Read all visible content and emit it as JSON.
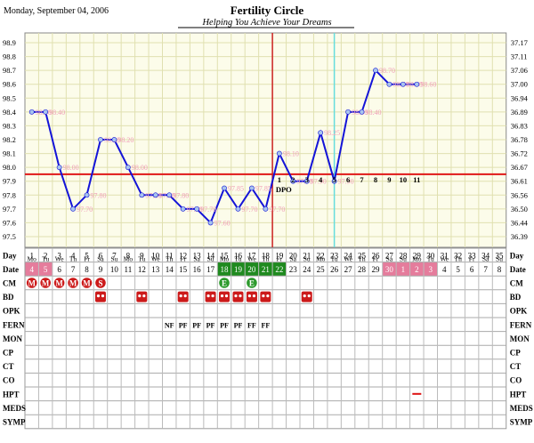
{
  "header": {
    "date": "Monday, September 04, 2006",
    "title": "Fertility Circle",
    "subtitle": "Helping You Achieve Your Dreams"
  },
  "colors": {
    "line": "#1414d8",
    "point": "#a8c4ee",
    "point_label": "#f0a0b8",
    "coverline": "#e01818",
    "ovulation_line": "#cc2222",
    "cycle_marker_line": "#66dddd",
    "grid": "#e0e0b0",
    "plot_bg": "#fcfcea",
    "menses": "#cc1a1a",
    "bd": "#cc1a1a",
    "cm_green": "#2d9a2d",
    "fertile_green": "#1f8a1f",
    "pink": "#e57c9c",
    "hpt": "#dd1111"
  },
  "chart_data": {
    "type": "line",
    "title": "Fertility Circle",
    "subtitle": "Helping You Achieve Your Dreams",
    "y_left_ticks": [
      "98.9",
      "98.8",
      "98.7",
      "98.6",
      "98.5",
      "98.4",
      "98.3",
      "98.2",
      "98.1",
      "98.0",
      "97.9",
      "97.8",
      "97.7",
      "97.6",
      "97.5"
    ],
    "y_right_ticks": [
      "37.17",
      "37.11",
      "37.06",
      "37.00",
      "36.94",
      "36.89",
      "36.83",
      "36.78",
      "36.72",
      "36.67",
      "36.61",
      "36.56",
      "36.50",
      "36.44",
      "36.39"
    ],
    "ylim": [
      97.4,
      98.95
    ],
    "days": [
      1,
      2,
      3,
      4,
      5,
      6,
      7,
      8,
      9,
      10,
      11,
      12,
      13,
      14,
      15,
      16,
      17,
      18,
      19,
      20,
      21,
      22,
      23,
      24,
      25,
      26,
      27,
      28,
      29,
      30,
      31,
      32,
      33,
      34,
      35
    ],
    "weekdays": [
      "Mo",
      "Tu",
      "We",
      "Th",
      "Fr",
      "Sa",
      "Su",
      "Mo",
      "Tu",
      "We",
      "Th",
      "Fr",
      "Sa",
      "Su",
      "Mo",
      "Tu",
      "We",
      "Th",
      "Fr",
      "Sa",
      "Su",
      "Mo",
      "Tu",
      "We",
      "Th",
      "Fr",
      "Sa",
      "Su",
      "Mo",
      "Tu",
      "We",
      "Th",
      "Fr",
      "Sa",
      "Su"
    ],
    "dates": [
      "4",
      "5",
      "6",
      "7",
      "8",
      "9",
      "10",
      "11",
      "12",
      "13",
      "14",
      "15",
      "16",
      "17",
      "18",
      "19",
      "20",
      "21",
      "22",
      "23",
      "24",
      "25",
      "26",
      "27",
      "28",
      "29",
      "30",
      "1",
      "2",
      "3",
      "4",
      "5",
      "6",
      "7",
      "8"
    ],
    "temps": [
      {
        "day": 1,
        "value": 98.4,
        "label": "98.40"
      },
      {
        "day": 2,
        "value": 98.4,
        "label": "98.40"
      },
      {
        "day": 3,
        "value": 98.0,
        "label": "98.00"
      },
      {
        "day": 4,
        "value": 97.7,
        "label": "97.70"
      },
      {
        "day": 5,
        "value": 97.8,
        "label": "97.80"
      },
      {
        "day": 6,
        "value": 98.2,
        "label": "98.20"
      },
      {
        "day": 7,
        "value": 98.2,
        "label": "98.20"
      },
      {
        "day": 8,
        "value": 98.0,
        "label": "98.00"
      },
      {
        "day": 9,
        "value": 97.8,
        "label": "97.80"
      },
      {
        "day": 10,
        "value": 97.8,
        "label": "97.80"
      },
      {
        "day": 11,
        "value": 97.8,
        "label": "97.80"
      },
      {
        "day": 12,
        "value": 97.7,
        "label": "97.70"
      },
      {
        "day": 13,
        "value": 97.7,
        "label": "97.70"
      },
      {
        "day": 14,
        "value": 97.6,
        "label": "97.60"
      },
      {
        "day": 15,
        "value": 97.85,
        "label": "97.85"
      },
      {
        "day": 16,
        "value": 97.7,
        "label": "97.70"
      },
      {
        "day": 17,
        "value": 97.85,
        "label": "97.85"
      },
      {
        "day": 18,
        "value": 97.7,
        "label": "97.70"
      },
      {
        "day": 19,
        "value": 98.1,
        "label": "98.10"
      },
      {
        "day": 20,
        "value": 97.9,
        "label": "97.90"
      },
      {
        "day": 21,
        "value": 97.9,
        "label": "97.90"
      },
      {
        "day": 22,
        "value": 98.25,
        "label": "98.25"
      },
      {
        "day": 23,
        "value": 97.9,
        "label": "97.90"
      },
      {
        "day": 24,
        "value": 98.4,
        "label": "98.40"
      },
      {
        "day": 25,
        "value": 98.4,
        "label": "98.40"
      },
      {
        "day": 26,
        "value": 98.7,
        "label": "98.70"
      },
      {
        "day": 27,
        "value": 98.6,
        "label": "98.60"
      },
      {
        "day": 28,
        "value": 98.6,
        "label": "98.60"
      },
      {
        "day": 29,
        "value": 98.6,
        "label": "98.60"
      }
    ],
    "coverline": 97.95,
    "ovulation_day": 18,
    "dpo_label": "DPO",
    "dpo_numbers": [
      {
        "day": 19,
        "text": "1"
      },
      {
        "day": 20,
        "text": "2"
      },
      {
        "day": 21,
        "text": "3"
      },
      {
        "day": 22,
        "text": "4"
      },
      {
        "day": 23,
        "text": "5"
      },
      {
        "day": 24,
        "text": "6"
      },
      {
        "day": 25,
        "text": "7"
      },
      {
        "day": 26,
        "text": "8"
      },
      {
        "day": 27,
        "text": "9"
      },
      {
        "day": 28,
        "text": "10"
      },
      {
        "day": 29,
        "text": "11"
      }
    ],
    "cycle_marker_day": 23,
    "date_highlights": {
      "pink_days": [
        1,
        2,
        27,
        28,
        29,
        30
      ],
      "green_days": [
        15,
        16,
        17,
        18,
        19
      ]
    },
    "row_labels": [
      "CM",
      "BD",
      "OPK",
      "FERN",
      "MON",
      "CP",
      "CT",
      "CO",
      "HPT",
      "MEDS",
      "SYMP"
    ],
    "row_labels_top": [
      "Day",
      "Date"
    ],
    "cm": [
      {
        "day": 1,
        "text": "M",
        "kind": "menses"
      },
      {
        "day": 2,
        "text": "M",
        "kind": "menses"
      },
      {
        "day": 3,
        "text": "M",
        "kind": "menses"
      },
      {
        "day": 4,
        "text": "M",
        "kind": "menses"
      },
      {
        "day": 5,
        "text": "M",
        "kind": "menses"
      },
      {
        "day": 6,
        "text": "S",
        "kind": "menses"
      },
      {
        "day": 15,
        "text": "E",
        "kind": "cm"
      },
      {
        "day": 17,
        "text": "E",
        "kind": "cm"
      }
    ],
    "bd_days": [
      6,
      9,
      12,
      14,
      15,
      16,
      17,
      18,
      21
    ],
    "fern": [
      {
        "day": 11,
        "text": "NF"
      },
      {
        "day": 12,
        "text": "PF"
      },
      {
        "day": 13,
        "text": "PF"
      },
      {
        "day": 14,
        "text": "PF"
      },
      {
        "day": 15,
        "text": "PF"
      },
      {
        "day": 16,
        "text": "PF"
      },
      {
        "day": 17,
        "text": "FF"
      },
      {
        "day": 18,
        "text": "FF"
      }
    ],
    "hpt_days": [
      29
    ]
  }
}
